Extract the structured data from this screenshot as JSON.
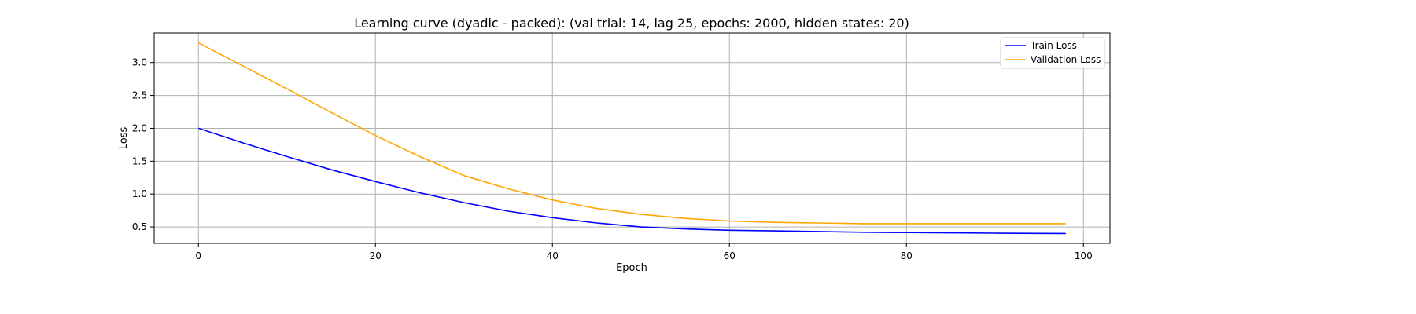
{
  "chart_data": {
    "type": "line",
    "title": "Learning curve (dyadic - packed): (val trial: 14, lag 25, epochs: 2000, hidden states: 20)",
    "xlabel": "Epoch",
    "ylabel": "Loss",
    "xlim": [
      -5,
      103
    ],
    "ylim": [
      0.25,
      3.45
    ],
    "xticks": [
      0,
      20,
      40,
      60,
      80,
      100
    ],
    "yticks": [
      0.5,
      1.0,
      1.5,
      2.0,
      2.5,
      3.0
    ],
    "xtick_labels": [
      "0",
      "20",
      "40",
      "60",
      "80",
      "100"
    ],
    "ytick_labels": [
      "0.5",
      "1.0",
      "1.5",
      "2.0",
      "2.5",
      "3.0"
    ],
    "grid": true,
    "legend_position": "top-right",
    "x": [
      0,
      5,
      10,
      15,
      20,
      25,
      30,
      35,
      40,
      45,
      50,
      55,
      60,
      65,
      70,
      75,
      80,
      85,
      90,
      95,
      98
    ],
    "series": [
      {
        "name": "Train Loss",
        "color": "#0000ff",
        "values": [
          2.0,
          1.78,
          1.57,
          1.37,
          1.19,
          1.02,
          0.87,
          0.74,
          0.64,
          0.56,
          0.5,
          0.47,
          0.45,
          0.44,
          0.43,
          0.42,
          0.415,
          0.41,
          0.405,
          0.402,
          0.4
        ]
      },
      {
        "name": "Validation Loss",
        "color": "#ffa500",
        "values": [
          3.3,
          2.95,
          2.6,
          2.24,
          1.89,
          1.57,
          1.28,
          1.08,
          0.91,
          0.78,
          0.69,
          0.63,
          0.59,
          0.57,
          0.56,
          0.55,
          0.55,
          0.55,
          0.55,
          0.55,
          0.55
        ]
      }
    ]
  }
}
